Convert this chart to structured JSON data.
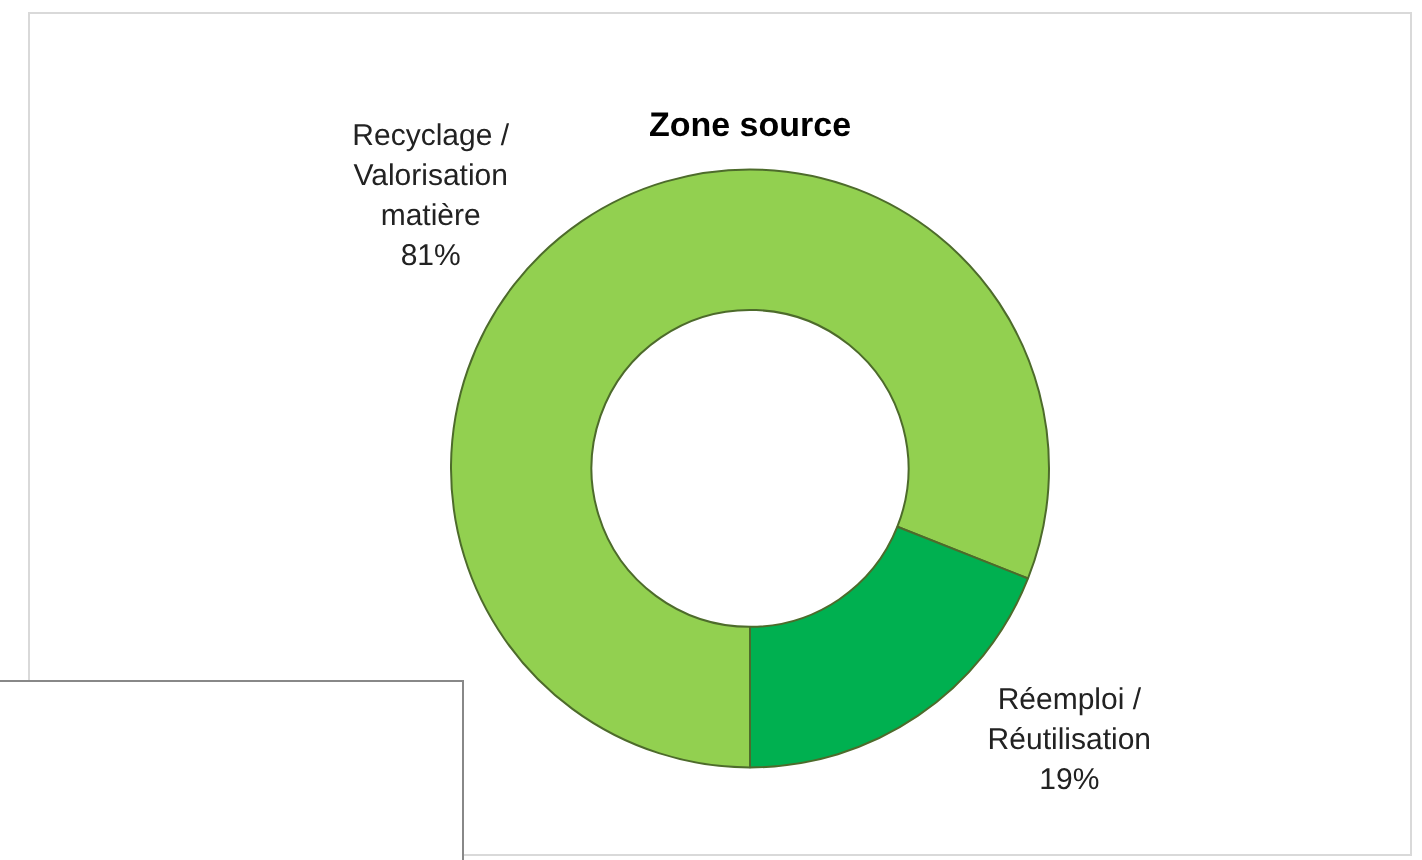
{
  "chart_data": {
    "type": "donut",
    "title": "Zone source",
    "categories": [
      "Recyclage / Valorisation matière",
      "Réemploi / Réutilisation"
    ],
    "values": [
      81,
      19
    ],
    "colors": [
      "#92d050",
      "#00b050"
    ],
    "value_labels": [
      "81%",
      "19%"
    ],
    "legend": false
  }
}
